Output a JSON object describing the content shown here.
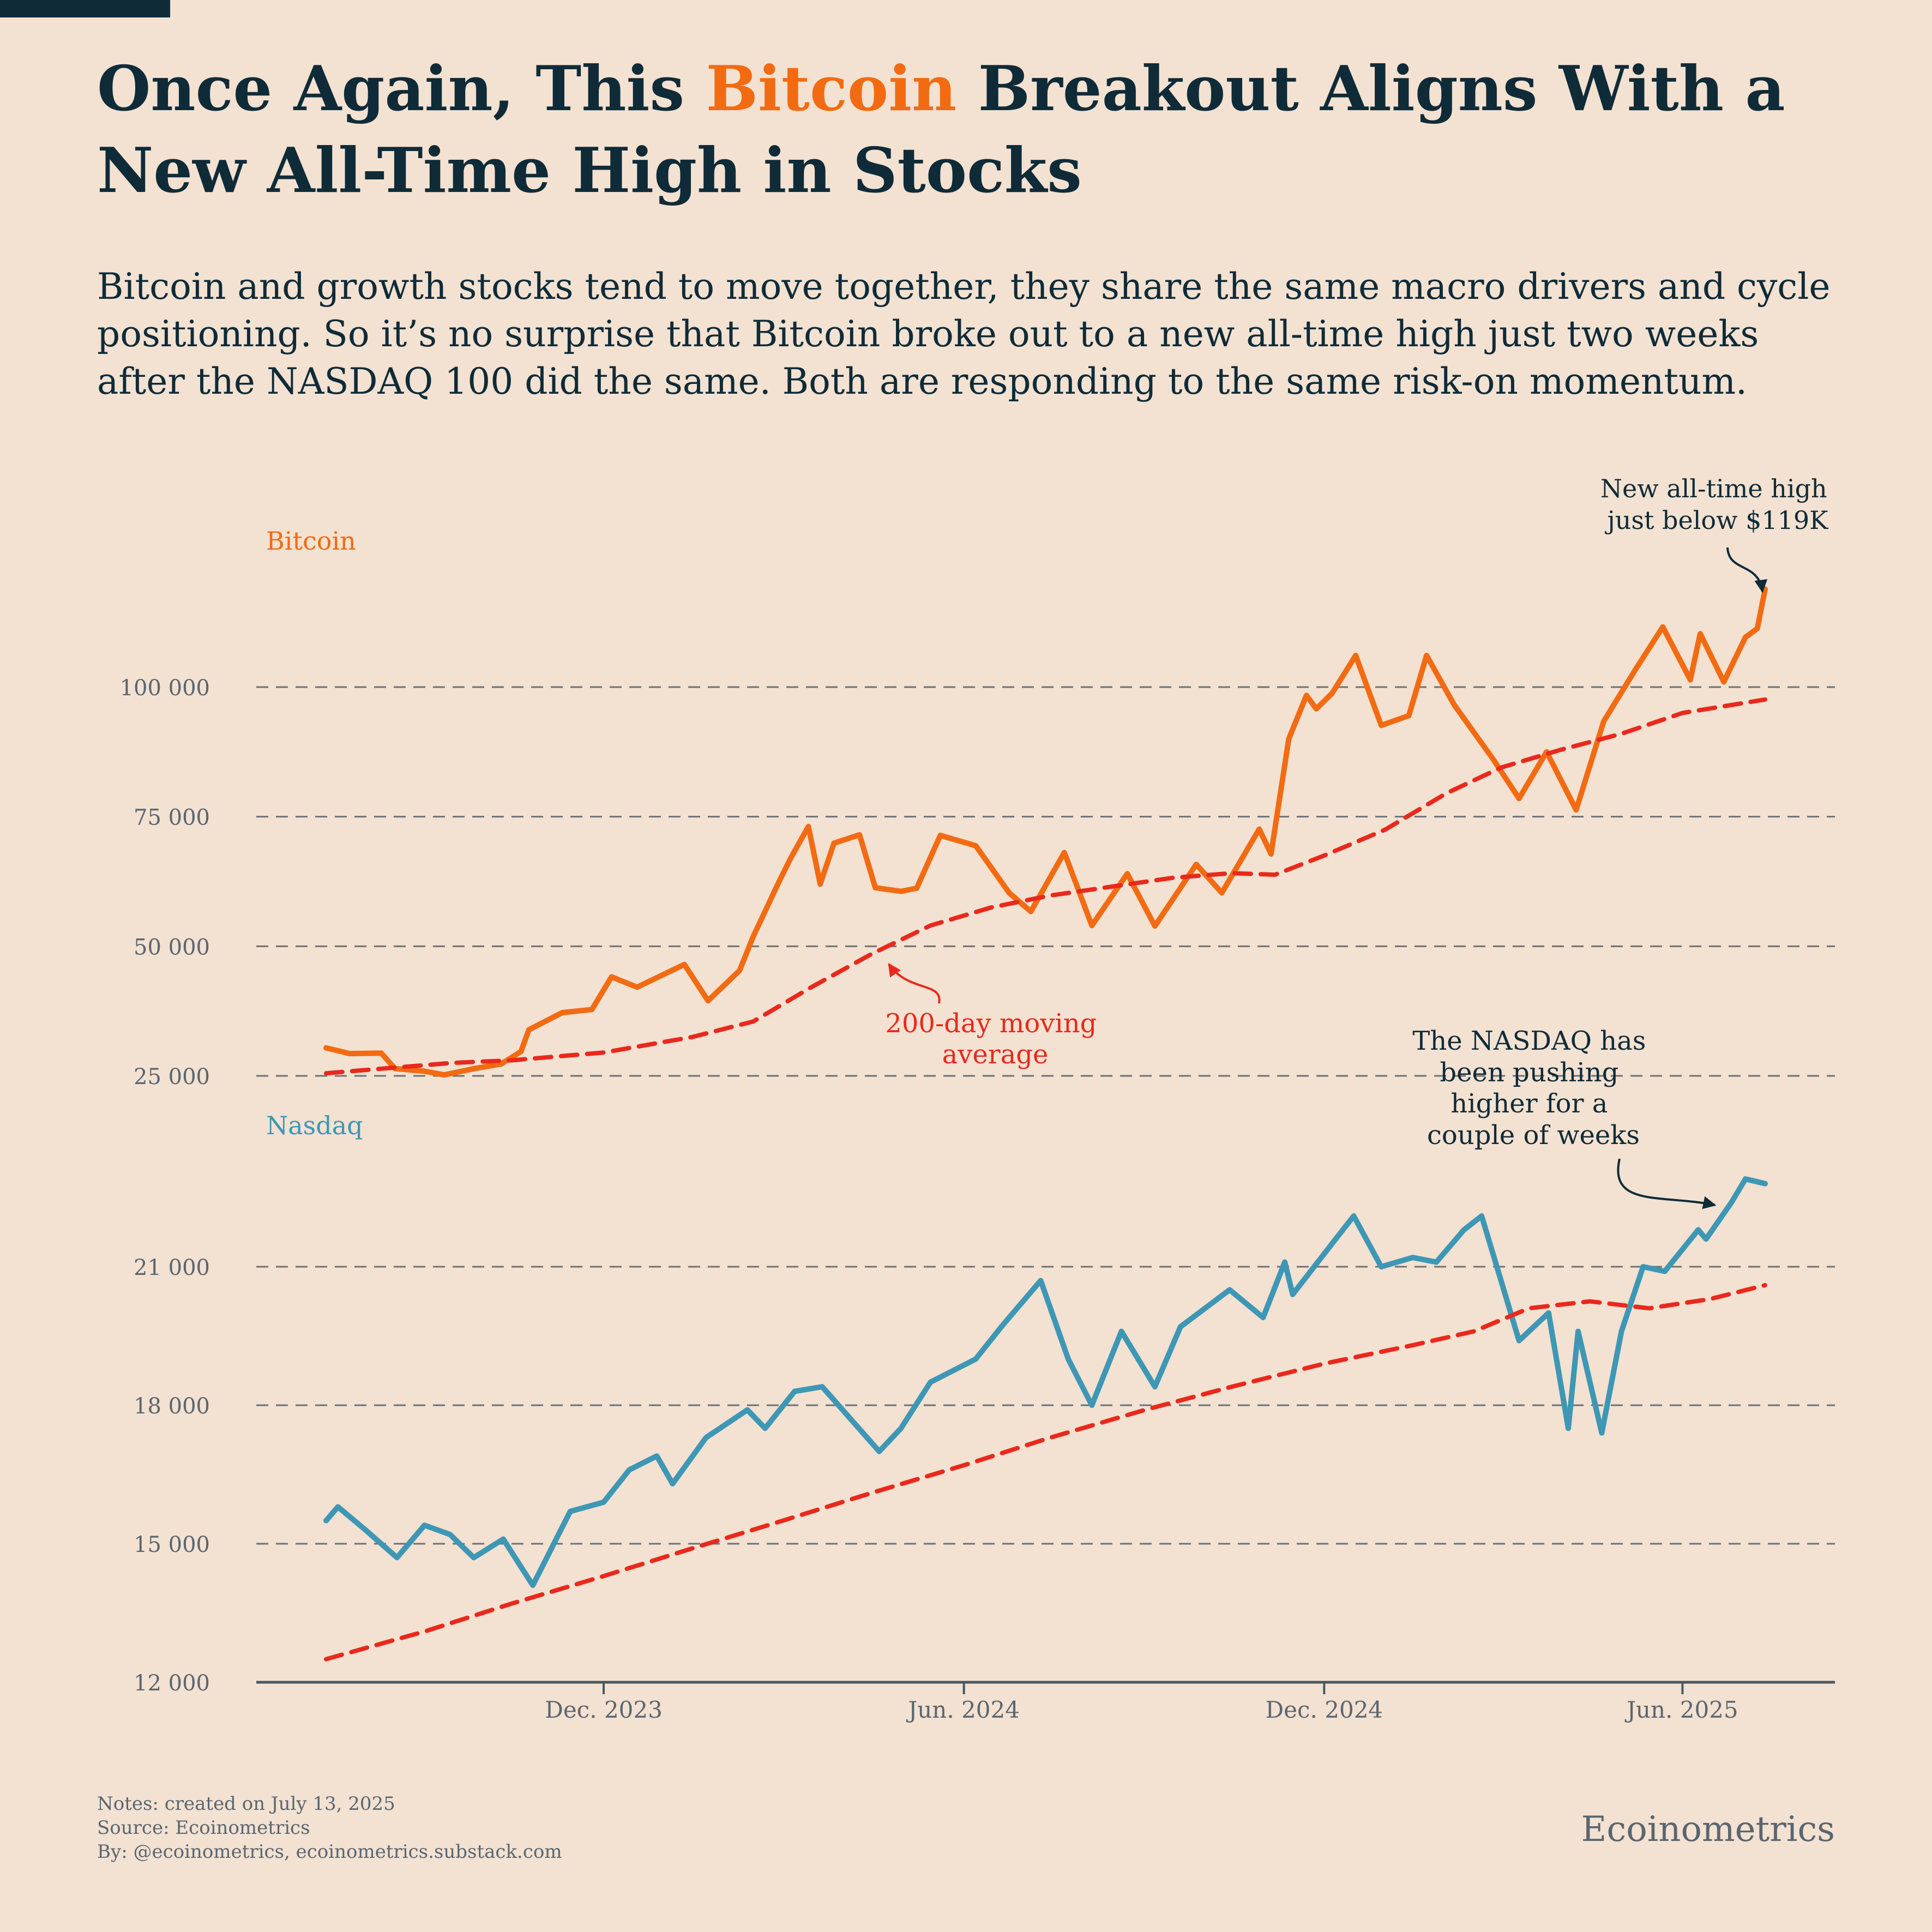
{
  "header": {
    "title_before": "Once Again, This ",
    "title_accent": "Bitcoin",
    "title_after": " Breakout Aligns With a New All-Time High in Stocks",
    "subtitle": "Bitcoin and growth stocks tend to move together, they share the same macro drivers and cycle positioning. So it’s no surprise that Bitcoin broke out to a new all-time high just two weeks after the NASDAQ 100 did the same. Both are responding to the same risk-on momentum."
  },
  "colors": {
    "background": "#f3e1d1",
    "title": "#0f2b38",
    "bitcoin": "#f26b12",
    "nasdaq": "#3d97b5",
    "moving_average": "#e8291c",
    "grid": "#6b7278",
    "axis_text": "#5a6670"
  },
  "chart_data": [
    {
      "type": "line",
      "panel_label": "Bitcoin",
      "ylim": [
        25000,
        119000
      ],
      "y_ticks": [
        25000,
        50000,
        75000,
        100000
      ],
      "y_tick_labels": [
        "25 000",
        "50 000",
        "75 000",
        "100 000"
      ],
      "grid": "horizontal dashed",
      "series": [
        {
          "color": "#f26b12",
          "points": [
            [
              "2023-07-13",
              30400
            ],
            [
              "2023-07-25",
              29300
            ],
            [
              "2023-08-10",
              29400
            ],
            [
              "2023-08-17",
              26400
            ],
            [
              "2023-09-01",
              25900
            ],
            [
              "2023-09-11",
              25200
            ],
            [
              "2023-09-25",
              26300
            ],
            [
              "2023-10-10",
              27300
            ],
            [
              "2023-10-20",
              29700
            ],
            [
              "2023-10-24",
              33900
            ],
            [
              "2023-11-10",
              37200
            ],
            [
              "2023-11-25",
              37800
            ],
            [
              "2023-12-05",
              44100
            ],
            [
              "2023-12-18",
              42100
            ],
            [
              "2024-01-11",
              46500
            ],
            [
              "2024-01-23",
              39500
            ],
            [
              "2024-02-08",
              45300
            ],
            [
              "2024-02-15",
              51900
            ],
            [
              "2024-02-28",
              62400
            ],
            [
              "2024-03-05",
              67000
            ],
            [
              "2024-03-14",
              73100
            ],
            [
              "2024-03-20",
              62000
            ],
            [
              "2024-03-27",
              69900
            ],
            [
              "2024-04-09",
              71500
            ],
            [
              "2024-04-17",
              61300
            ],
            [
              "2024-04-30",
              60600
            ],
            [
              "2024-05-08",
              61200
            ],
            [
              "2024-05-20",
              71400
            ],
            [
              "2024-06-07",
              69400
            ],
            [
              "2024-06-24",
              60300
            ],
            [
              "2024-07-05",
              56700
            ],
            [
              "2024-07-22",
              68100
            ],
            [
              "2024-08-05",
              54000
            ],
            [
              "2024-08-23",
              64000
            ],
            [
              "2024-09-06",
              53900
            ],
            [
              "2024-09-27",
              65800
            ],
            [
              "2024-10-10",
              60300
            ],
            [
              "2024-10-29",
              72600
            ],
            [
              "2024-11-04",
              67800
            ],
            [
              "2024-11-13",
              90000
            ],
            [
              "2024-11-22",
              98400
            ],
            [
              "2024-11-27",
              95800
            ],
            [
              "2024-12-05",
              98800
            ],
            [
              "2024-12-17",
              106100
            ],
            [
              "2024-12-30",
              92600
            ],
            [
              "2025-01-13",
              94500
            ],
            [
              "2025-01-22",
              106100
            ],
            [
              "2025-02-05",
              96600
            ],
            [
              "2025-02-25",
              86000
            ],
            [
              "2025-03-10",
              78500
            ],
            [
              "2025-03-24",
              87500
            ],
            [
              "2025-04-08",
              76300
            ],
            [
              "2025-04-22",
              93400
            ],
            [
              "2025-05-08",
              103300
            ],
            [
              "2025-05-22",
              111600
            ],
            [
              "2025-06-05",
              101400
            ],
            [
              "2025-06-10",
              110300
            ],
            [
              "2025-06-22",
              101000
            ],
            [
              "2025-07-03",
              109600
            ],
            [
              "2025-07-09",
              111300
            ],
            [
              "2025-07-13",
              118900
            ]
          ]
        },
        {
          "color": "#e8291c",
          "points": [
            [
              "2023-07-13",
              25500
            ],
            [
              "2023-09-15",
              27500
            ],
            [
              "2023-10-15",
              28000
            ],
            [
              "2023-12-01",
              29500
            ],
            [
              "2024-01-15",
              32500
            ],
            [
              "2024-02-15",
              35500
            ],
            [
              "2024-03-15",
              42000
            ],
            [
              "2024-04-15",
              48500
            ],
            [
              "2024-05-15",
              54000
            ],
            [
              "2024-06-15",
              57500
            ],
            [
              "2024-07-15",
              59800
            ],
            [
              "2024-08-15",
              61500
            ],
            [
              "2024-09-15",
              63200
            ],
            [
              "2024-10-15",
              64100
            ],
            [
              "2024-11-06",
              63800
            ],
            [
              "2024-12-01",
              67500
            ],
            [
              "2025-01-01",
              72500
            ],
            [
              "2025-02-01",
              79500
            ],
            [
              "2025-03-01",
              84500
            ],
            [
              "2025-04-01",
              88000
            ],
            [
              "2025-05-01",
              91000
            ],
            [
              "2025-06-01",
              95000
            ],
            [
              "2025-07-13",
              97600
            ]
          ]
        }
      ],
      "annotations": [
        {
          "text": "New all-time high just below $119K"
        },
        {
          "text": "200-day moving average"
        }
      ]
    },
    {
      "type": "line",
      "panel_label": "Nasdaq",
      "ylim": [
        12000,
        22500
      ],
      "y_ticks": [
        12000,
        15000,
        18000,
        21000
      ],
      "y_tick_labels": [
        "12 000",
        "15 000",
        "18 000",
        "21 000"
      ],
      "x_ticks": [
        "2023-12-01",
        "2024-06-01",
        "2024-12-01",
        "2025-06-01"
      ],
      "x_tick_labels": [
        "Dec. 2023",
        "Jun. 2024",
        "Dec. 2024",
        "Jun. 2025"
      ],
      "grid": "horizontal dashed",
      "series": [
        {
          "color": "#3d97b5",
          "points": [
            [
              "2023-07-13",
              15500
            ],
            [
              "2023-07-19",
              15800
            ],
            [
              "2023-08-02",
              15300
            ],
            [
              "2023-08-18",
              14700
            ],
            [
              "2023-09-01",
              15400
            ],
            [
              "2023-09-14",
              15200
            ],
            [
              "2023-09-26",
              14700
            ],
            [
              "2023-10-11",
              15100
            ],
            [
              "2023-10-26",
              14100
            ],
            [
              "2023-11-14",
              15700
            ],
            [
              "2023-12-01",
              15900
            ],
            [
              "2023-12-14",
              16600
            ],
            [
              "2023-12-28",
              16900
            ],
            [
              "2024-01-05",
              16300
            ],
            [
              "2024-01-22",
              17300
            ],
            [
              "2024-02-12",
              17900
            ],
            [
              "2024-02-21",
              17500
            ],
            [
              "2024-03-07",
              18300
            ],
            [
              "2024-03-21",
              18400
            ],
            [
              "2024-04-19",
              17000
            ],
            [
              "2024-04-30",
              17500
            ],
            [
              "2024-05-15",
              18500
            ],
            [
              "2024-06-07",
              19000
            ],
            [
              "2024-06-20",
              19700
            ],
            [
              "2024-07-10",
              20700
            ],
            [
              "2024-07-24",
              19000
            ],
            [
              "2024-08-05",
              18000
            ],
            [
              "2024-08-20",
              19600
            ],
            [
              "2024-09-06",
              18400
            ],
            [
              "2024-09-19",
              19700
            ],
            [
              "2024-10-14",
              20500
            ],
            [
              "2024-10-31",
              19900
            ],
            [
              "2024-11-11",
              21100
            ],
            [
              "2024-11-15",
              20400
            ],
            [
              "2024-12-05",
              21500
            ],
            [
              "2024-12-16",
              22100
            ],
            [
              "2024-12-30",
              21000
            ],
            [
              "2025-01-15",
              21200
            ],
            [
              "2025-01-27",
              21100
            ],
            [
              "2025-02-10",
              21800
            ],
            [
              "2025-02-19",
              22100
            ],
            [
              "2025-03-10",
              19400
            ],
            [
              "2025-03-25",
              20000
            ],
            [
              "2025-04-04",
              17500
            ],
            [
              "2025-04-09",
              19600
            ],
            [
              "2025-04-21",
              17400
            ],
            [
              "2025-05-01",
              19600
            ],
            [
              "2025-05-12",
              21000
            ],
            [
              "2025-05-23",
              20900
            ],
            [
              "2025-06-09",
              21800
            ],
            [
              "2025-06-13",
              21600
            ],
            [
              "2025-06-26",
              22400
            ],
            [
              "2025-07-03",
              22900
            ],
            [
              "2025-07-13",
              22800
            ]
          ]
        },
        {
          "color": "#e8291c",
          "points": [
            [
              "2023-07-13",
              12500
            ],
            [
              "2023-09-01",
              13100
            ],
            [
              "2023-10-15",
              13700
            ],
            [
              "2023-12-01",
              14300
            ],
            [
              "2024-01-15",
              14900
            ],
            [
              "2024-03-01",
              15500
            ],
            [
              "2024-04-15",
              16100
            ],
            [
              "2024-06-01",
              16700
            ],
            [
              "2024-07-15",
              17300
            ],
            [
              "2024-09-01",
              17900
            ],
            [
              "2024-10-15",
              18400
            ],
            [
              "2024-12-01",
              18900
            ],
            [
              "2025-01-15",
              19300
            ],
            [
              "2025-02-15",
              19600
            ],
            [
              "2025-03-15",
              20100
            ],
            [
              "2025-04-15",
              20250
            ],
            [
              "2025-05-15",
              20100
            ],
            [
              "2025-06-15",
              20300
            ],
            [
              "2025-07-13",
              20600
            ]
          ]
        }
      ],
      "annotations": [
        {
          "text": "The NASDAQ has been pushing higher for a couple of weeks"
        }
      ]
    }
  ],
  "footer": {
    "notes": "Notes: created on July 13, 2025",
    "source": "Source: Ecoinometrics",
    "by": "By: @ecoinometrics, ecoinometrics.substack.com",
    "brand": "Ecoinometrics"
  }
}
